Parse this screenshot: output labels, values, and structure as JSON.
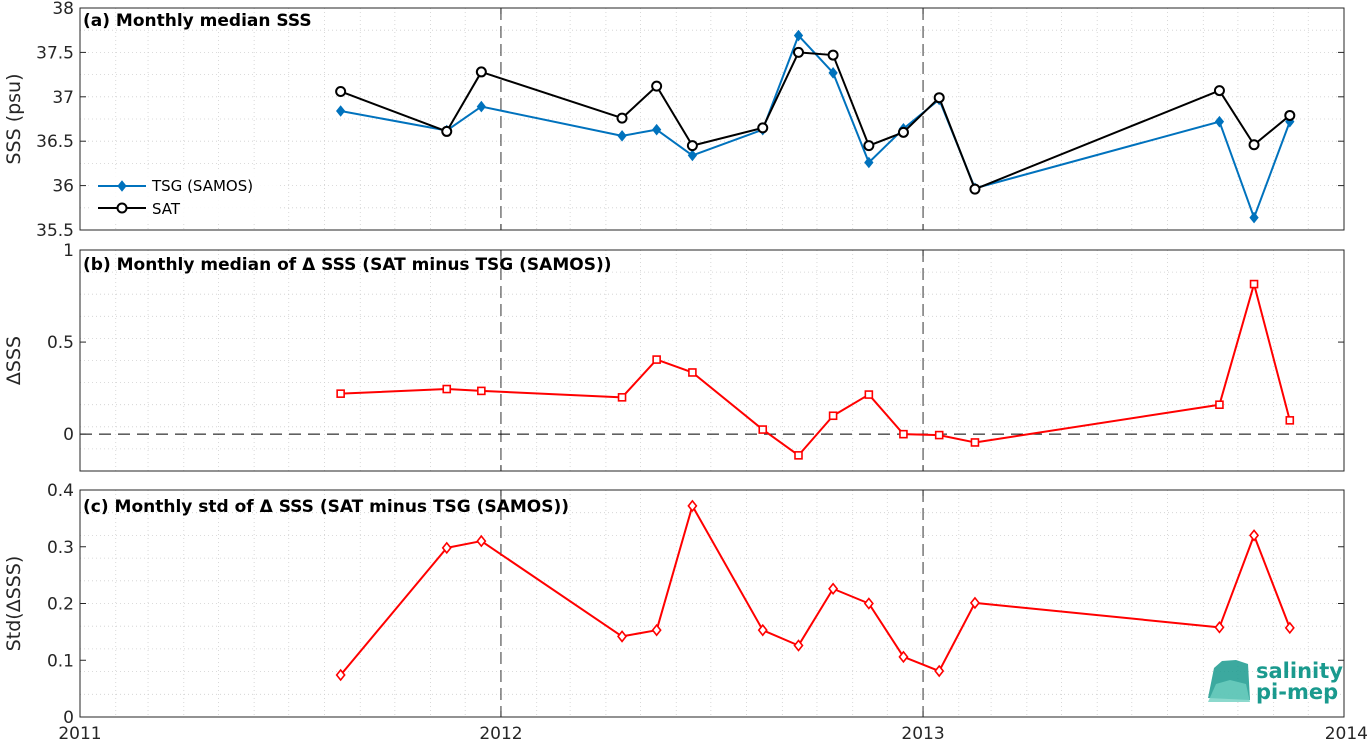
{
  "colors": {
    "tsg": "#0072bd",
    "sat": "#000000",
    "delta": "#ff0000",
    "logo": "#1a9a8e"
  },
  "logo": {
    "line1": "salinity",
    "line2": "pi-mep"
  },
  "x_ticks": [
    "2011",
    "2012",
    "2013",
    "2014"
  ],
  "chart_data": [
    {
      "id": "a",
      "type": "line",
      "title": "(a) Monthly median SSS",
      "ylabel": "SSS (psu)",
      "xlim": [
        "2011-01-01",
        "2014-01-01"
      ],
      "ylim": [
        35.5,
        38
      ],
      "yticks": [
        "35.5",
        "36",
        "36.5",
        "37",
        "37.5",
        "38"
      ],
      "grid": true,
      "legend_position": "left",
      "x": [
        "2011-08",
        "2011-11",
        "2011-12",
        "2012-04",
        "2012-05",
        "2012-06",
        "2012-08",
        "2012-09",
        "2012-10",
        "2012-11",
        "2012-12",
        "2013-01",
        "2013-02",
        "2013-09",
        "2013-10",
        "2013-11"
      ],
      "series": [
        {
          "name": "TSG (SAMOS)",
          "marker": "diamond-filled",
          "values": [
            36.84,
            36.62,
            36.89,
            36.56,
            36.63,
            36.34,
            36.63,
            37.69,
            37.27,
            36.26,
            36.64,
            36.97,
            35.97,
            36.72,
            35.64,
            36.72
          ]
        },
        {
          "name": "SAT",
          "marker": "circle",
          "values": [
            37.06,
            36.61,
            37.28,
            36.76,
            37.12,
            36.45,
            36.65,
            37.5,
            37.47,
            36.45,
            36.6,
            36.99,
            35.96,
            37.07,
            36.46,
            36.79
          ]
        }
      ]
    },
    {
      "id": "b",
      "type": "line",
      "title": "(b) Monthly median of Δ SSS (SAT minus TSG (SAMOS))",
      "ylabel": "ΔSSS",
      "xlim": [
        "2011-01-01",
        "2014-01-01"
      ],
      "ylim": [
        -0.2,
        1
      ],
      "yticks": [
        "0",
        "0.5",
        "1"
      ],
      "zero_line": true,
      "grid": true,
      "x": [
        "2011-08",
        "2011-11",
        "2011-12",
        "2012-04",
        "2012-05",
        "2012-06",
        "2012-08",
        "2012-09",
        "2012-10",
        "2012-11",
        "2012-12",
        "2013-01",
        "2013-02",
        "2013-09",
        "2013-10",
        "2013-11"
      ],
      "series": [
        {
          "name": "",
          "marker": "square",
          "values": [
            0.22,
            0.245,
            0.235,
            0.2,
            0.405,
            0.335,
            0.025,
            -0.115,
            0.1,
            0.215,
            0.0,
            -0.005,
            -0.045,
            0.16,
            0.815,
            0.075
          ]
        }
      ]
    },
    {
      "id": "c",
      "type": "line",
      "title": "(c) Monthly std of Δ SSS (SAT minus TSG (SAMOS))",
      "ylabel": "Std(ΔSSS)",
      "xlim": [
        "2011-01-01",
        "2014-01-01"
      ],
      "ylim": [
        0,
        0.4
      ],
      "yticks": [
        "0",
        "0.1",
        "0.2",
        "0.3",
        "0.4"
      ],
      "grid": true,
      "x": [
        "2011-08",
        "2011-11",
        "2011-12",
        "2012-04",
        "2012-05",
        "2012-06",
        "2012-08",
        "2012-09",
        "2012-10",
        "2012-11",
        "2012-12",
        "2013-01",
        "2013-02",
        "2013-09",
        "2013-10",
        "2013-11"
      ],
      "series": [
        {
          "name": "",
          "marker": "diamond",
          "values": [
            0.074,
            0.298,
            0.31,
            0.142,
            0.153,
            0.372,
            0.153,
            0.126,
            0.226,
            0.2,
            0.106,
            0.081,
            0.201,
            0.158,
            0.32,
            0.157
          ]
        }
      ]
    }
  ]
}
